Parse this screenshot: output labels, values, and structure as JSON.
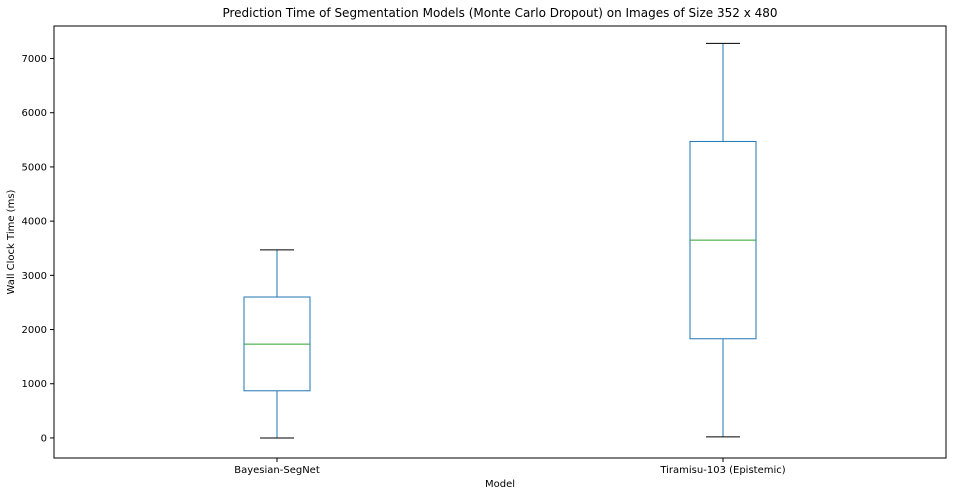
{
  "chart_data": {
    "type": "box",
    "title": "Prediction Time of Segmentation Models (Monte Carlo Dropout) on Images of Size 352 x 480",
    "xlabel": "Model",
    "ylabel": "Wall Clock Time (ms)",
    "ylim": [
      -370,
      7600
    ],
    "yticks": [
      0,
      1000,
      2000,
      3000,
      4000,
      5000,
      6000,
      7000
    ],
    "grid": false,
    "categories": [
      "Bayesian-SegNet",
      "Tiramisu-103 (Epistemic)"
    ],
    "boxes": [
      {
        "label": "Bayesian-SegNet",
        "whislo": 0,
        "q1": 870,
        "median": 1730,
        "q3": 2600,
        "whishi": 3470
      },
      {
        "label": "Tiramisu-103 (Epistemic)",
        "whislo": 20,
        "q1": 1830,
        "median": 3650,
        "q3": 5470,
        "whishi": 7280
      }
    ],
    "colors": {
      "box": "#1f77b4",
      "median": "#2ca02c",
      "whisker": "#1f77b4",
      "cap": "#000000"
    }
  }
}
